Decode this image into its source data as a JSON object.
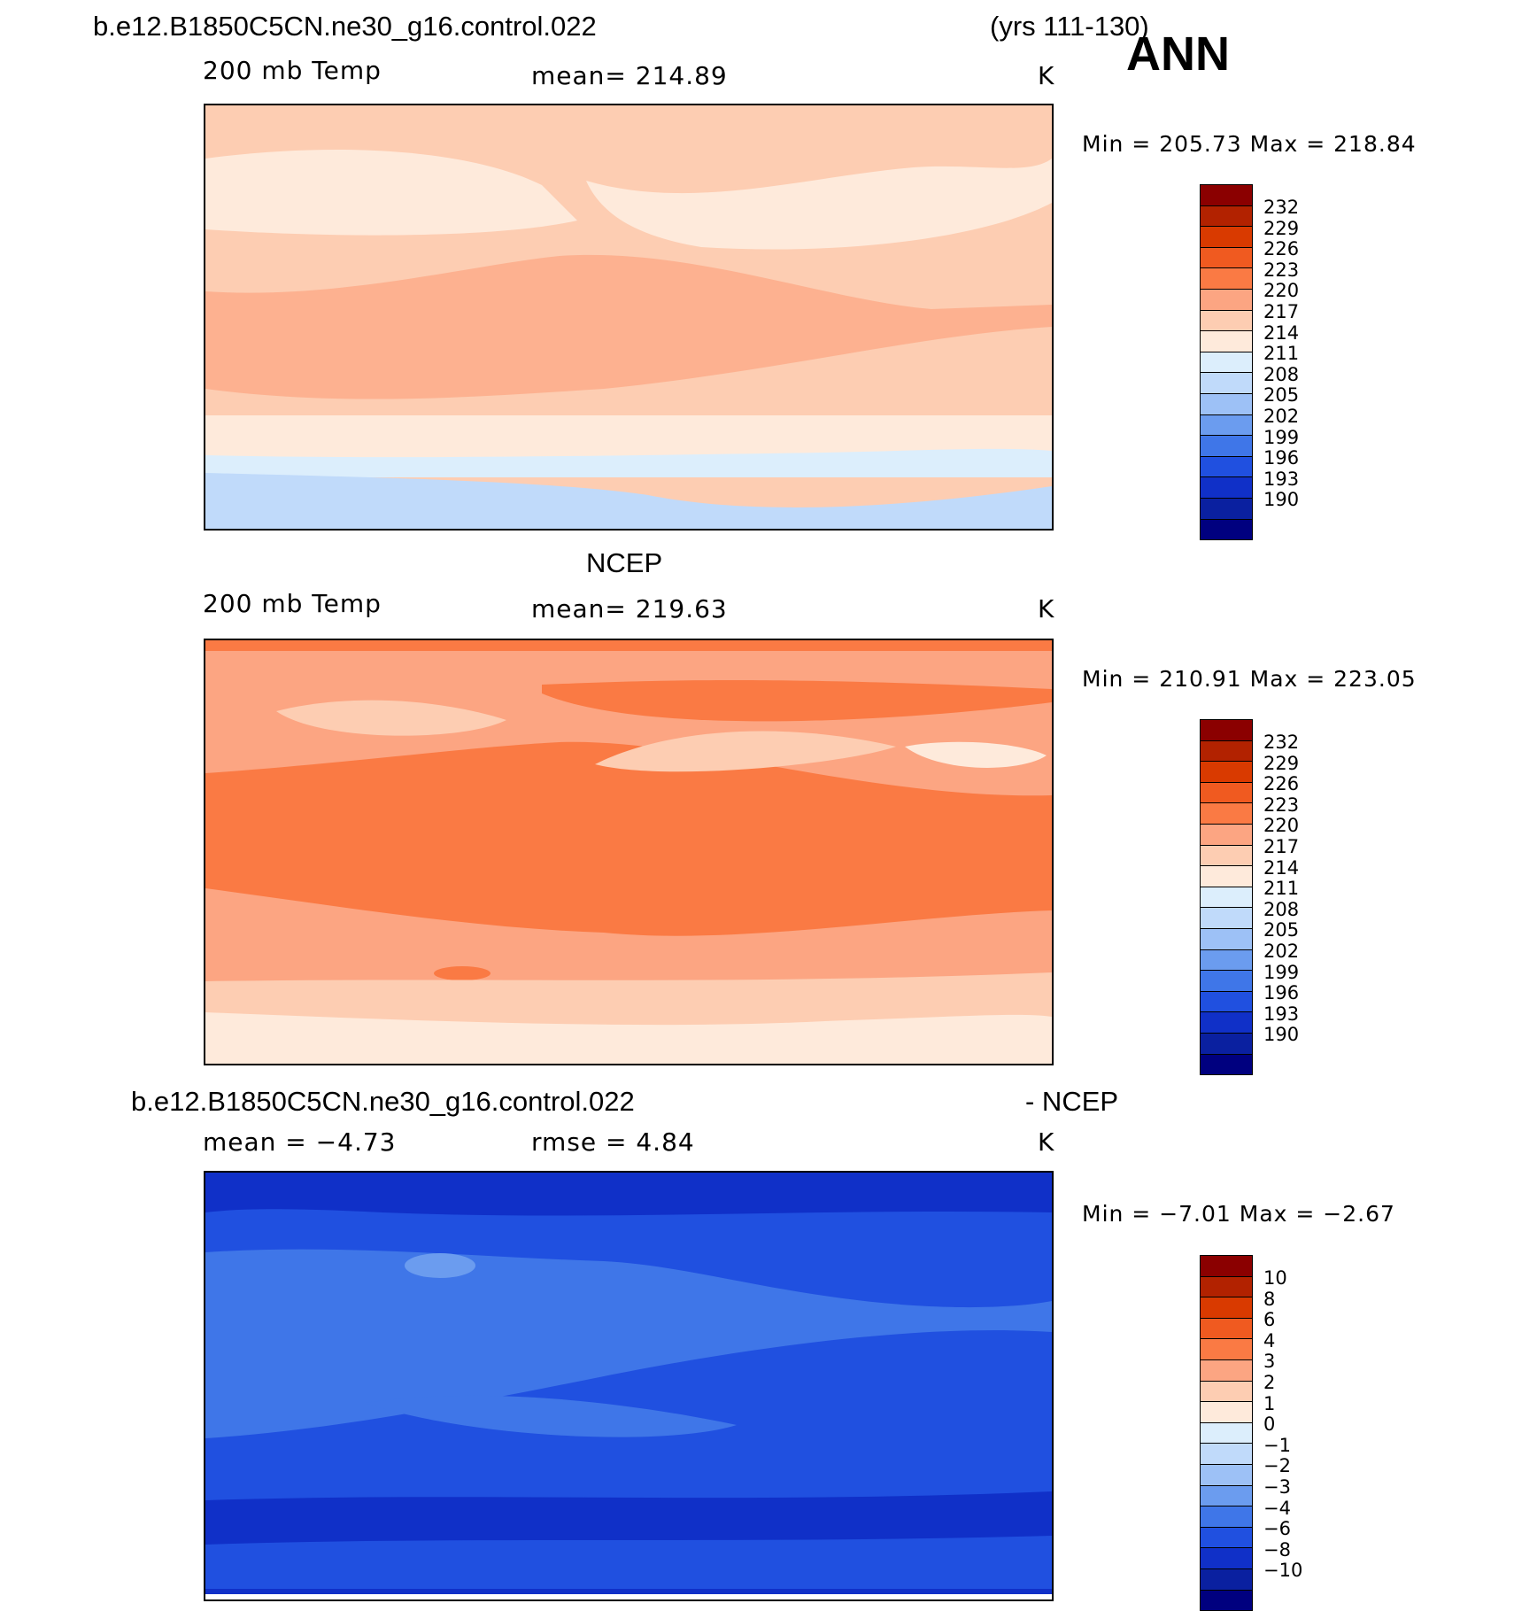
{
  "header": {
    "case_name": "b.e12.B1850C5CN.ne30_g16.control.022",
    "years": "(yrs 111-130)",
    "season": "ANN"
  },
  "panels": [
    {
      "title": "",
      "variable": "200 mb Temp",
      "stat": "mean=  214.89",
      "units": "K",
      "minmax": "Min  =  205.73  Max  =  218.84"
    },
    {
      "title": "NCEP",
      "variable": "200 mb Temp",
      "stat": "mean=  219.63",
      "units": "K",
      "minmax": "Min  =  210.91  Max  =  223.05"
    },
    {
      "title": "b.e12.B1850C5CN.ne30_g16.control.022",
      "title_right": "- NCEP",
      "variable": "mean  =    −4.73",
      "stat": "rmse  =     4.84",
      "units": "K",
      "minmax": "Min  =    −7.01  Max  =    −2.67"
    }
  ],
  "colors": {
    "palette": [
      "#8b0000",
      "#b22200",
      "#d93a00",
      "#f05a20",
      "#fa7a44",
      "#fca582",
      "#fdcdb2",
      "#feeadb",
      "#dceefc",
      "#c0dafa",
      "#9dc1f6",
      "#6b9cef",
      "#3f76e8",
      "#2050e0",
      "#1030c8",
      "#0a20a0",
      "#00007f"
    ]
  },
  "chart_data": [
    {
      "type": "heatmap",
      "title": "b.e12.B1850C5CN.ne30_g16.control.022 (yrs 111-130) ANN",
      "variable": "200 mb Temp",
      "units": "K",
      "mean": 214.89,
      "min": 205.73,
      "max": 218.84,
      "colorbar_levels": [
        "232",
        "229",
        "226",
        "223",
        "220",
        "217",
        "214",
        "211",
        "208",
        "205",
        "202",
        "199",
        "196",
        "193",
        "190"
      ]
    },
    {
      "type": "heatmap",
      "title": "NCEP",
      "variable": "200 mb Temp",
      "units": "K",
      "mean": 219.63,
      "min": 210.91,
      "max": 223.05,
      "colorbar_levels": [
        "232",
        "229",
        "226",
        "223",
        "220",
        "217",
        "214",
        "211",
        "208",
        "205",
        "202",
        "199",
        "196",
        "193",
        "190"
      ]
    },
    {
      "type": "heatmap",
      "title": "b.e12.B1850C5CN.ne30_g16.control.022 - NCEP",
      "units": "K",
      "mean": -4.73,
      "rmse": 4.84,
      "min": -7.01,
      "max": -2.67,
      "colorbar_levels": [
        "10",
        "8",
        "6",
        "4",
        "3",
        "2",
        "1",
        "0",
        "−1",
        "−2",
        "−3",
        "−4",
        "−6",
        "−8",
        "−10"
      ]
    }
  ]
}
